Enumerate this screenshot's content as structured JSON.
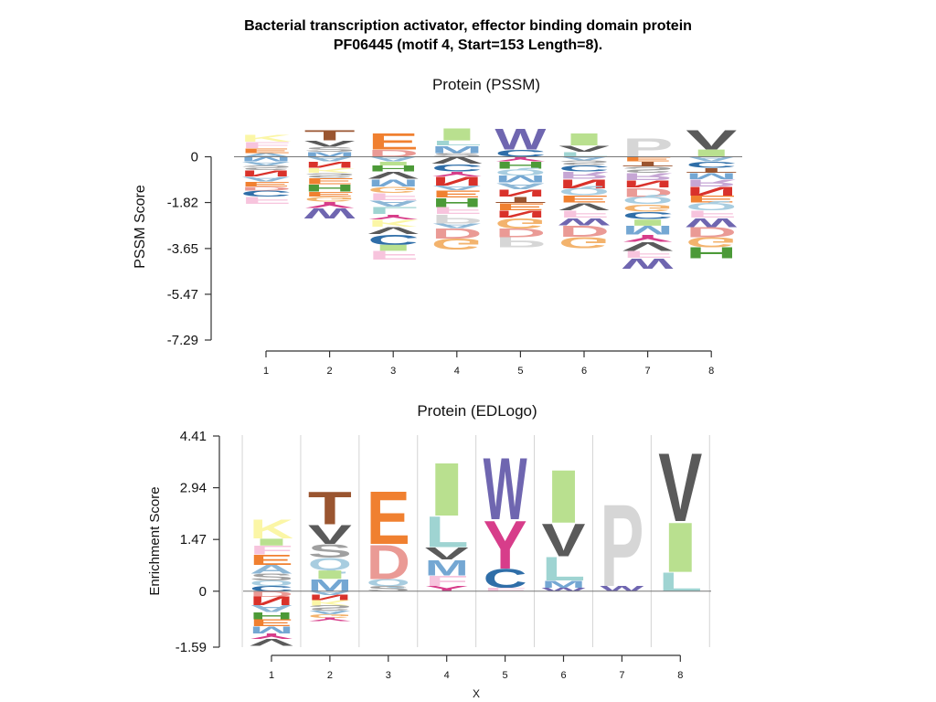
{
  "title": {
    "line1": "Bacterial transcription activator,  effector binding domain protein",
    "line2": "PF06445 (motif 4, Start=153 Length=8)."
  },
  "chart_data": [
    {
      "type": "sequence-logo",
      "title": "Protein (PSSM)",
      "ylabel": "PSSM  Score",
      "xlabel": "",
      "yticks": [
        "0",
        "-1.82",
        "-3.65",
        "-5.47",
        "-7.29"
      ],
      "ytick_values": [
        0,
        -1.82,
        -3.65,
        -5.47,
        -7.29
      ],
      "ylim": [
        -7.29,
        1.0
      ],
      "categories": [
        "1",
        "2",
        "3",
        "4",
        "5",
        "6",
        "7",
        "8"
      ],
      "columns": [
        {
          "pos": 1,
          "above": [
            [
              "K",
              0.3
            ],
            [
              "F",
              0.25
            ],
            [
              "E",
              0.2
            ],
            [
              "A",
              0.15
            ]
          ],
          "below": [
            [
              "M",
              0.2
            ],
            [
              "A",
              0.15
            ],
            [
              "S",
              0.2
            ],
            [
              "N",
              0.25
            ],
            [
              "A",
              0.2
            ],
            [
              "E",
              0.2
            ],
            [
              "D",
              0.15
            ],
            [
              "C",
              0.25
            ],
            [
              "F",
              0.3
            ]
          ]
        },
        {
          "pos": 2,
          "above": [
            [
              "T",
              0.4
            ],
            [
              "V",
              0.25
            ],
            [
              "S",
              0.2
            ],
            [
              "M",
              0.2
            ]
          ],
          "below": [
            [
              "A",
              0.2
            ],
            [
              "N",
              0.25
            ],
            [
              "K",
              0.2
            ],
            [
              "S",
              0.2
            ],
            [
              "E",
              0.25
            ],
            [
              "H",
              0.3
            ],
            [
              "E",
              0.2
            ],
            [
              "G",
              0.2
            ],
            [
              "Y",
              0.25
            ],
            [
              "W",
              0.4
            ]
          ]
        },
        {
          "pos": 3,
          "above": [
            [
              "E",
              0.65
            ],
            [
              "D",
              0.3
            ]
          ],
          "below": [
            [
              "A",
              0.2
            ],
            [
              "I",
              0.15
            ],
            [
              "H",
              0.25
            ],
            [
              "V",
              0.3
            ],
            [
              "M",
              0.3
            ],
            [
              "G",
              0.25
            ],
            [
              "F",
              0.3
            ],
            [
              "A",
              0.25
            ],
            [
              "L",
              0.3
            ],
            [
              "Y",
              0.2
            ],
            [
              "K",
              0.3
            ],
            [
              "V",
              0.3
            ],
            [
              "C",
              0.4
            ],
            [
              "I",
              0.25
            ],
            [
              "F",
              0.35
            ]
          ]
        },
        {
          "pos": 4,
          "above": [
            [
              "I",
              0.5
            ],
            [
              "L",
              0.2
            ],
            [
              "M",
              0.3
            ],
            [
              "S",
              0.15
            ]
          ],
          "below": [
            [
              "V",
              0.3
            ],
            [
              "C",
              0.3
            ],
            [
              "Y",
              0.2
            ],
            [
              "N",
              0.35
            ],
            [
              "A",
              0.2
            ],
            [
              "E",
              0.3
            ],
            [
              "H",
              0.35
            ],
            [
              "F",
              0.3
            ],
            [
              "P",
              0.35
            ],
            [
              "A",
              0.2
            ],
            [
              "D",
              0.4
            ],
            [
              "G",
              0.45
            ]
          ]
        },
        {
          "pos": 5,
          "above": [
            [
              "W",
              0.85
            ],
            [
              "C",
              0.3
            ]
          ],
          "below": [
            [
              "Y",
              0.2
            ],
            [
              "H",
              0.3
            ],
            [
              "Q",
              0.25
            ],
            [
              "M",
              0.3
            ],
            [
              "A",
              0.25
            ],
            [
              "N",
              0.3
            ],
            [
              "T",
              0.25
            ],
            [
              "E",
              0.3
            ],
            [
              "N",
              0.3
            ],
            [
              "G",
              0.4
            ],
            [
              "D",
              0.35
            ],
            [
              "P",
              0.4
            ]
          ]
        },
        {
          "pos": 6,
          "above": [
            [
              "I",
              0.5
            ],
            [
              "V",
              0.25
            ],
            [
              "L",
              0.2
            ]
          ],
          "below": [
            [
              "A",
              0.15
            ],
            [
              "S",
              0.2
            ],
            [
              "C",
              0.25
            ],
            [
              "R",
              0.3
            ],
            [
              "N",
              0.35
            ],
            [
              "Q",
              0.3
            ],
            [
              "E",
              0.3
            ],
            [
              "V",
              0.3
            ],
            [
              "F",
              0.3
            ],
            [
              "W",
              0.3
            ],
            [
              "D",
              0.45
            ],
            [
              "G",
              0.45
            ]
          ]
        },
        {
          "pos": 7,
          "above": [
            [
              "P",
              0.75
            ]
          ],
          "below": [
            [
              "E",
              0.2
            ],
            [
              "T",
              0.2
            ],
            [
              "S",
              0.25
            ],
            [
              "R",
              0.3
            ],
            [
              "N",
              0.3
            ],
            [
              "D",
              0.35
            ],
            [
              "Q",
              0.3
            ],
            [
              "G",
              0.3
            ],
            [
              "C",
              0.3
            ],
            [
              "I",
              0.25
            ],
            [
              "M",
              0.35
            ],
            [
              "Y",
              0.3
            ],
            [
              "V",
              0.35
            ],
            [
              "F",
              0.3
            ],
            [
              "W",
              0.4
            ]
          ]
        },
        {
          "pos": 8,
          "above": [
            [
              "V",
              0.8
            ],
            [
              "I",
              0.3
            ]
          ],
          "below": [
            [
              "A",
              0.2
            ],
            [
              "C",
              0.25
            ],
            [
              "T",
              0.2
            ],
            [
              "M",
              0.25
            ],
            [
              "R",
              0.3
            ],
            [
              "N",
              0.35
            ],
            [
              "E",
              0.3
            ],
            [
              "Q",
              0.3
            ],
            [
              "F",
              0.3
            ],
            [
              "W",
              0.35
            ],
            [
              "D",
              0.4
            ],
            [
              "G",
              0.4
            ],
            [
              "H",
              0.45
            ]
          ]
        }
      ]
    },
    {
      "type": "sequence-logo",
      "title": "Protein (EDLogo)",
      "ylabel": "Enrichment Score",
      "xlabel": "X",
      "yticks": [
        "4.41",
        "2.94",
        "1.47",
        "0",
        "-1.59"
      ],
      "ytick_values": [
        4.41,
        2.94,
        1.47,
        0,
        -1.59
      ],
      "ylim": [
        -1.59,
        4.41
      ],
      "categories": [
        "1",
        "2",
        "3",
        "4",
        "5",
        "6",
        "7",
        "8"
      ],
      "columns": [
        {
          "pos": 1,
          "above": [
            [
              "K",
              0.55
            ],
            [
              "I",
              0.2
            ],
            [
              "F",
              0.25
            ],
            [
              "E",
              0.3
            ],
            [
              "A",
              0.25
            ],
            [
              "S",
              0.2
            ],
            [
              "Q",
              0.15
            ],
            [
              "C",
              0.15
            ]
          ],
          "below": [
            [
              "D",
              0.15
            ],
            [
              "N",
              0.25
            ],
            [
              "A",
              0.2
            ],
            [
              "H",
              0.2
            ],
            [
              "E",
              0.2
            ],
            [
              "M",
              0.2
            ],
            [
              "Y",
              0.15
            ],
            [
              "V",
              0.2
            ]
          ]
        },
        {
          "pos": 2,
          "above": [
            [
              "T",
              0.95
            ],
            [
              "V",
              0.55
            ],
            [
              "S",
              0.4
            ],
            [
              "Q",
              0.35
            ],
            [
              "I",
              0.25
            ],
            [
              "M",
              0.35
            ]
          ],
          "below": [
            [
              "A",
              0.1
            ],
            [
              "N",
              0.15
            ],
            [
              "K",
              0.15
            ],
            [
              "S",
              0.15
            ],
            [
              "A",
              0.1
            ],
            [
              "G",
              0.1
            ],
            [
              "Y",
              0.1
            ]
          ]
        },
        {
          "pos": 3,
          "above": [
            [
              "E",
              1.55
            ],
            [
              "D",
              1.0
            ],
            [
              "Q",
              0.2
            ],
            [
              "S",
              0.15
            ]
          ],
          "below": []
        },
        {
          "pos": 4,
          "above": [
            [
              "I",
              1.55
            ],
            [
              "L",
              0.9
            ],
            [
              "V",
              0.35
            ],
            [
              "M",
              0.45
            ],
            [
              "F",
              0.3
            ],
            [
              "Y",
              0.15
            ]
          ],
          "below": []
        },
        {
          "pos": 5,
          "above": [
            [
              "W",
              1.8
            ],
            [
              "Y",
              1.4
            ],
            [
              "C",
              0.55
            ],
            [
              "F",
              0.1
            ]
          ],
          "below": []
        },
        {
          "pos": 6,
          "above": [
            [
              "I",
              1.55
            ],
            [
              "V",
              0.95
            ],
            [
              "L",
              0.7
            ],
            [
              "M",
              0.2
            ],
            [
              "W",
              0.1
            ]
          ],
          "below": []
        },
        {
          "pos": 7,
          "above": [
            [
              "P",
              2.4
            ],
            [
              "W",
              0.15
            ]
          ],
          "below": []
        },
        {
          "pos": 8,
          "above": [
            [
              "V",
              2.0
            ],
            [
              "I",
              1.45
            ],
            [
              "L",
              0.55
            ]
          ],
          "below": []
        }
      ]
    }
  ],
  "colors": {
    "A": "#8db7d6",
    "C": "#2f6ea8",
    "D": "#ea9a95",
    "E": "#f08030",
    "F": "#f7c4dd",
    "G": "#f3b36d",
    "H": "#4c9a38",
    "I": "#b9e08f",
    "K": "#fbf6a6",
    "L": "#9fd4d2",
    "M": "#74a7d3",
    "N": "#d9322b",
    "P": "#d6d6d6",
    "Q": "#a8cde0",
    "R": "#c6a6d4",
    "S": "#a0a0a0",
    "T": "#9a5530",
    "V": "#5a5a5a",
    "W": "#6f66b0",
    "Y": "#d73d8a"
  }
}
